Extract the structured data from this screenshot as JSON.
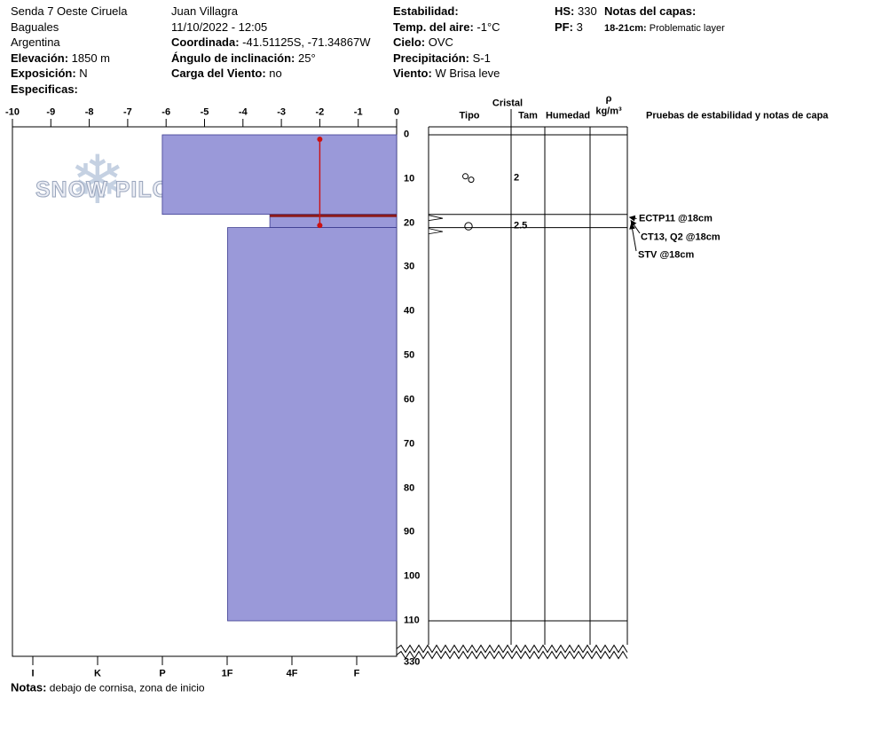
{
  "header": {
    "col1": [
      {
        "b": "",
        "t": "Senda 7 Oeste Ciruela"
      },
      {
        "b": "",
        "t": "Baguales"
      },
      {
        "b": "",
        "t": "Argentina"
      },
      {
        "b": "Elevación:",
        "t": " 1850 m"
      },
      {
        "b": "Exposición:",
        "t": " N"
      },
      {
        "b": "Especificas:",
        "t": ""
      }
    ],
    "col2": [
      {
        "b": "",
        "t": "Juan Villagra"
      },
      {
        "b": "",
        "t": "11/10/2022 - 12:05"
      },
      {
        "b": "Coordinada:",
        "t": " -41.51125S, -71.34867W"
      },
      {
        "b": "Ángulo de inclinación:",
        "t": " 25°"
      },
      {
        "b": "Carga del Viento:",
        "t": " no"
      }
    ],
    "col3": [
      {
        "b": "Estabilidad:",
        "t": ""
      },
      {
        "b": "Temp. del aire:",
        "t": " -1°C"
      },
      {
        "b": "Cielo:",
        "t": " OVC"
      },
      {
        "b": "Precipitación:",
        "t": " S-1"
      },
      {
        "b": "Viento:",
        "t": " W Brisa leve"
      }
    ],
    "col4": [
      {
        "b": "HS:",
        "t": " 330"
      },
      {
        "b": "PF:",
        "t": " 3"
      }
    ],
    "col5": [
      {
        "b": "Notas del capas:",
        "t": ""
      },
      {
        "b": "18-21cm:",
        "t": " Problematic layer"
      }
    ]
  },
  "table": {
    "group_header": "Cristal",
    "col_tipo": "Tipo",
    "col_tam": "Tam",
    "col_humedad": "Humedad",
    "col_rho": "ρ",
    "col_rho_unit": "kg/m³",
    "col_tests": "Pruebas de estabilidad y notas de capa"
  },
  "chart_data": {
    "type": "bar",
    "title": "",
    "temp_axis_ticks": [
      -10,
      -9,
      -8,
      -7,
      -6,
      -5,
      -4,
      -3,
      -2,
      -1,
      0
    ],
    "hardness_ticks": [
      "I",
      "K",
      "P",
      "1F",
      "4F",
      "F"
    ],
    "depth_ticks_cm": [
      0,
      10,
      20,
      30,
      40,
      50,
      60,
      70,
      80,
      90,
      100,
      110
    ],
    "total_depth_label": "330",
    "hs_cm": 330,
    "layers": [
      {
        "top_cm": 0,
        "bottom_cm": 18,
        "hardness": "P",
        "plot_value": -6.1,
        "problematic": false
      },
      {
        "top_cm": 18,
        "bottom_cm": 21,
        "hardness": "1F-4F",
        "plot_value": -3.3,
        "problematic": true
      },
      {
        "top_cm": 21,
        "bottom_cm": 110,
        "hardness": "1F",
        "plot_value": -4.4,
        "problematic": false
      }
    ],
    "temperature_profile_c": [
      {
        "depth_cm": 1,
        "temp_c": -2
      },
      {
        "depth_cm": 20.5,
        "temp_c": -2
      }
    ],
    "grains": [
      {
        "row_center_cm": 9.8,
        "symbol": "two-circles",
        "size_mm": "2"
      },
      {
        "row_center_cm": 20.7,
        "symbol": "circle",
        "size_mm": "2.5"
      }
    ],
    "tests": [
      "ECTP11 @18cm",
      "CT13, Q2 @18cm",
      "STV @18cm"
    ]
  },
  "footer": {
    "label": "Notas:",
    "text": " debajo de cornisa, zona de inicio"
  },
  "watermark": {
    "text": "SNOW PILOT",
    "flake": "❄"
  },
  "colors": {
    "layer_fill": "#9a99d9",
    "layer_border": "#3c3c90",
    "problem_layer": "#8b1a1a",
    "temp_line": "#cc1111",
    "watermark": "#c8d0e0"
  }
}
